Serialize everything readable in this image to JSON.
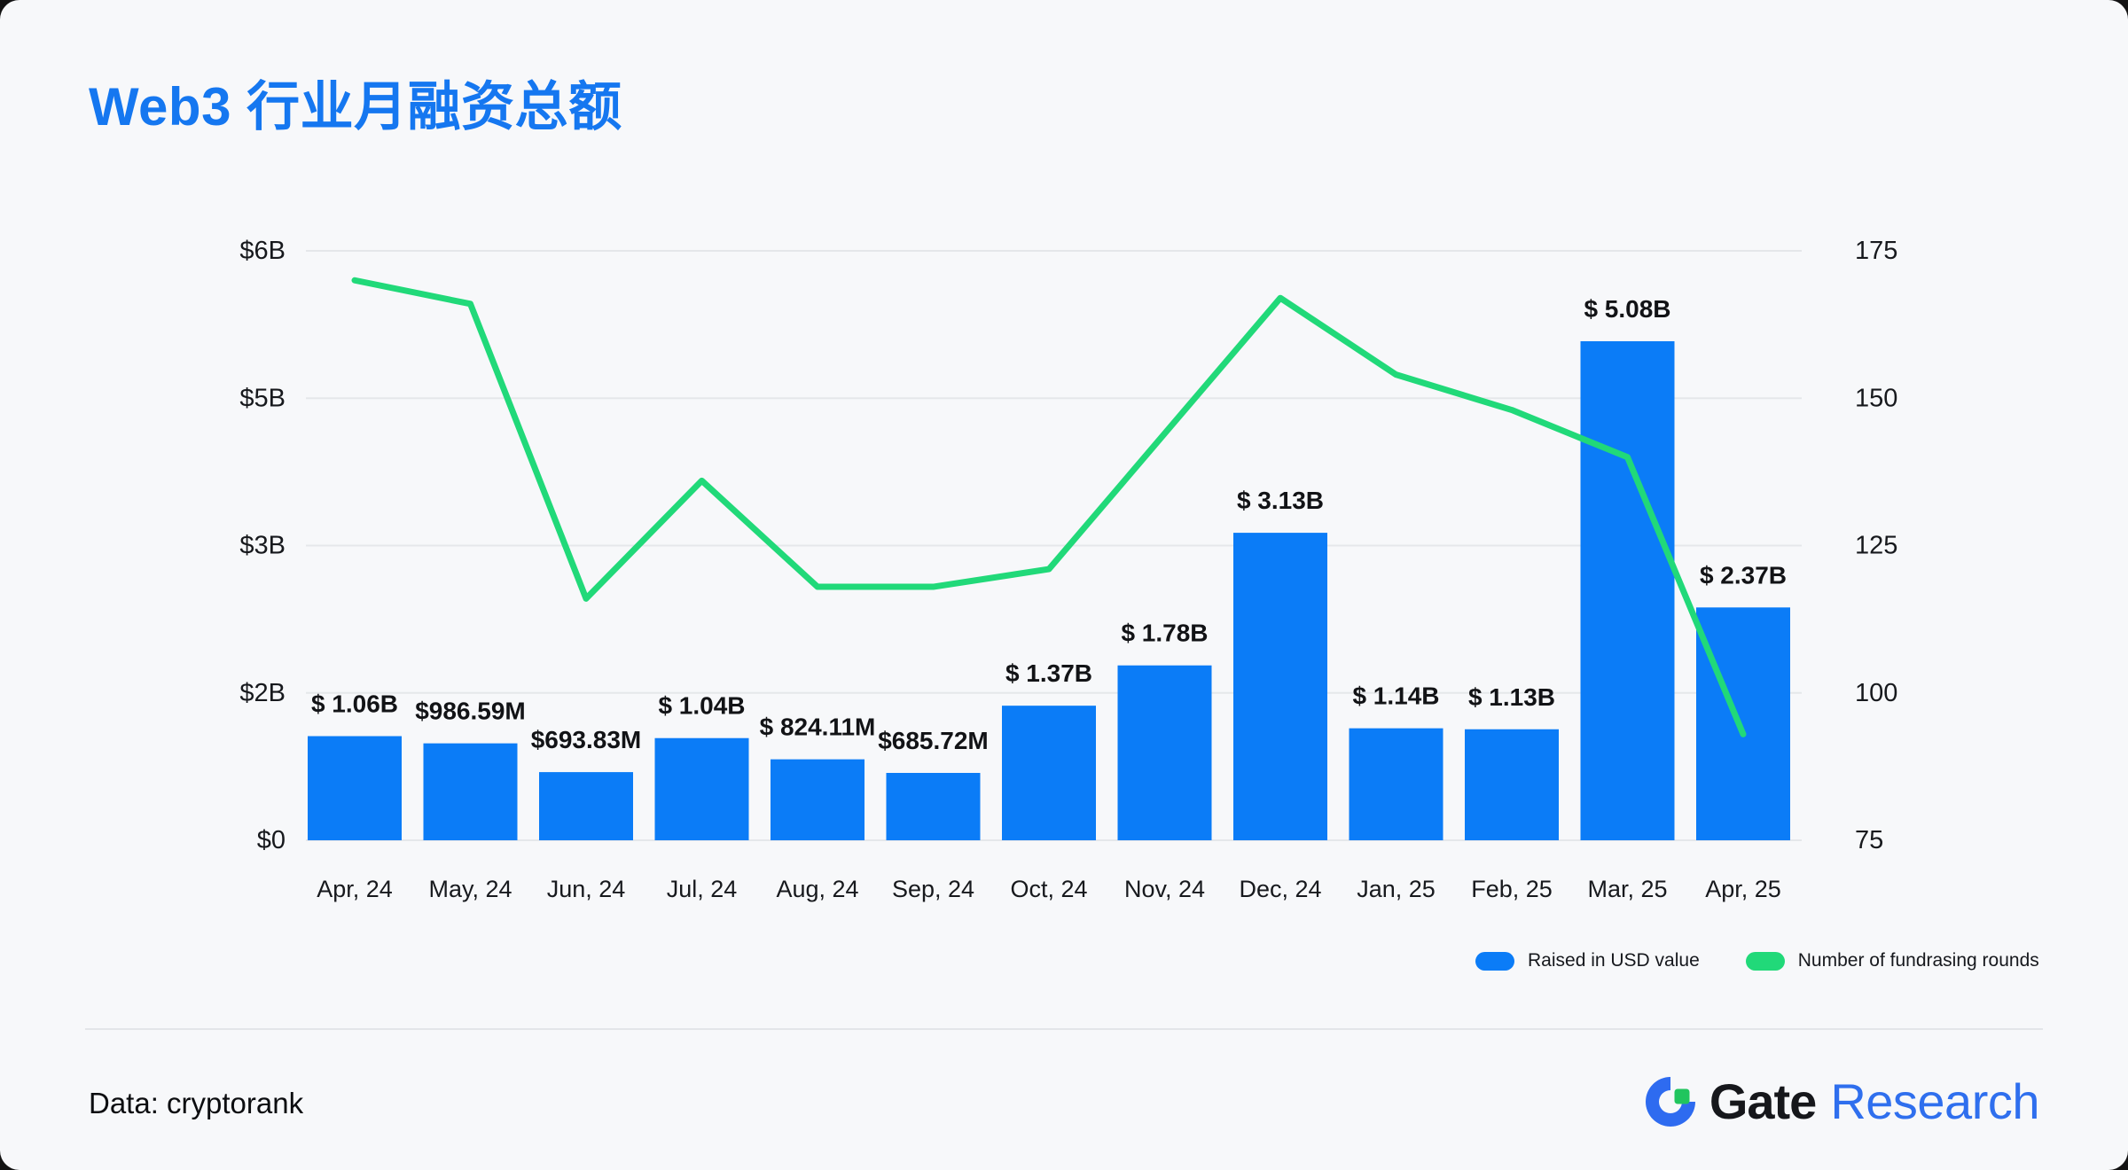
{
  "title": "Web3 行业月融资总额",
  "legend": [
    {
      "label": "Raised in USD value",
      "color": "#0b7cf7"
    },
    {
      "label": "Number of fundrasing rounds",
      "color": "#21d979"
    }
  ],
  "footer": {
    "source": "Data: cryptorank",
    "brand_gate": "Gate",
    "brand_research": "Research"
  },
  "colors": {
    "background": "#f7f8fa",
    "title": "#1577f0",
    "bar": "#0b7cf7",
    "line": "#21d979",
    "grid": "#e5e7ea",
    "axis_text": "#17191d",
    "bar_label": "#121316"
  },
  "chart_data": {
    "type": "bar+line",
    "title": "Web3 行业月融资总额",
    "categories": [
      "Apr, 24",
      "May, 24",
      "Jun, 24",
      "Jul, 24",
      "Aug, 24",
      "Sep, 24",
      "Oct, 24",
      "Nov, 24",
      "Dec, 24",
      "Jan, 25",
      "Feb, 25",
      "Mar, 25",
      "Apr, 25"
    ],
    "series": [
      {
        "name": "Raised in USD value",
        "type": "bar",
        "unit": "USD billions",
        "values": [
          1.06,
          0.98659,
          0.69383,
          1.04,
          0.82411,
          0.68572,
          1.37,
          1.78,
          3.13,
          1.14,
          1.13,
          5.08,
          2.37
        ],
        "labels": [
          "$ 1.06B",
          "$986.59M",
          "$693.83M",
          "$ 1.04B",
          "$ 824.11M",
          "$685.72M",
          "$ 1.37B",
          "$ 1.78B",
          "$ 3.13B",
          "$ 1.14B",
          "$ 1.13B",
          "$ 5.08B",
          "$ 2.37B"
        ]
      },
      {
        "name": "Number of fundrasing rounds",
        "type": "line",
        "values": [
          170,
          166,
          116,
          136,
          118,
          118,
          121,
          144,
          167,
          154,
          148,
          140,
          93
        ]
      }
    ],
    "left_axis": {
      "tick_labels": [
        "$6B",
        "$5B",
        "$3B",
        "$2B",
        "$0"
      ],
      "range_billions": [
        0,
        6
      ]
    },
    "right_axis": {
      "tick_labels": [
        "175",
        "150",
        "125",
        "100",
        "75"
      ],
      "range": [
        75,
        175
      ]
    },
    "grid": true,
    "legend_position": "bottom-right"
  }
}
